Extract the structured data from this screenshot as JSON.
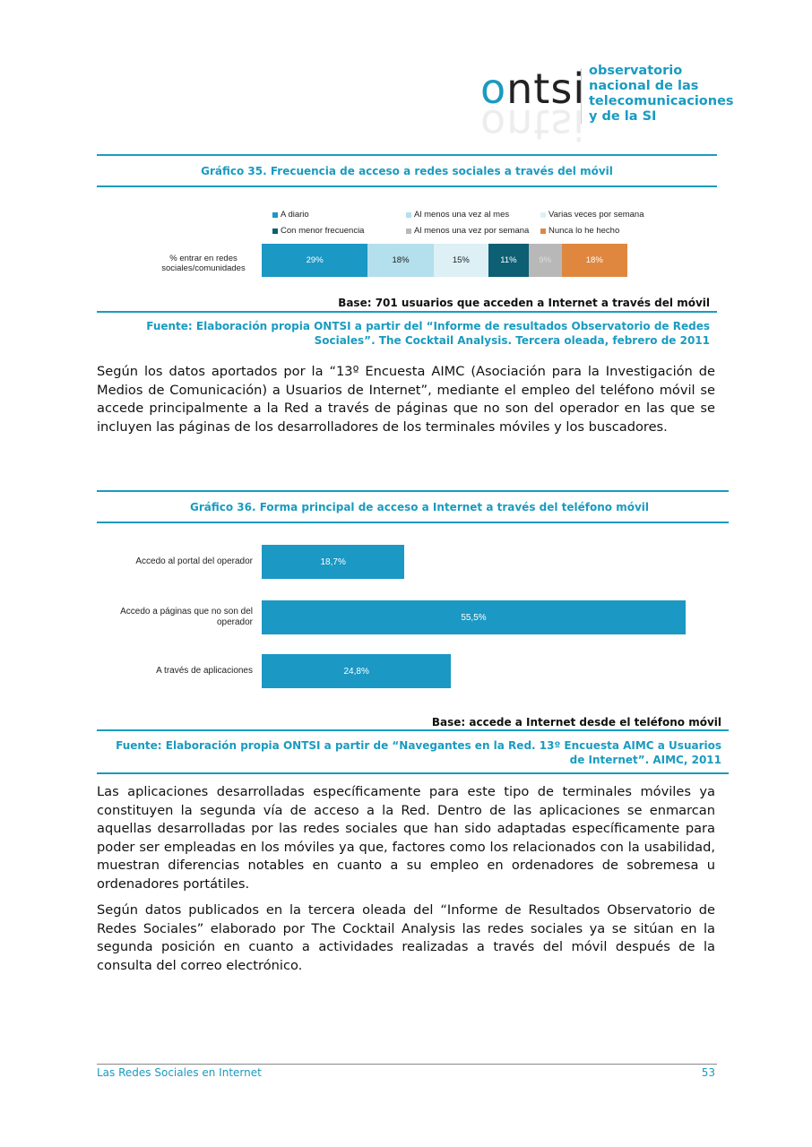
{
  "logo": {
    "word": "ontsi",
    "text": [
      "observatorio",
      "nacional de las",
      "telecomunicaciones",
      "y de la SI"
    ]
  },
  "chart1": {
    "title": "Gráfico 35. Frecuencia de acceso a redes sociales a través del móvil",
    "base": "Base: 701 usuarios que acceden a Internet a través del móvil",
    "fuente1": "Fuente: Elaboración propia ONTSI a partir del “Informe de resultados Observatorio de Redes",
    "fuente2": "Sociales”. The Cocktail Analysis. Tercera oleada, febrero de 2011"
  },
  "chart2": {
    "title": "Gráfico 36. Forma principal de acceso a Internet a través del teléfono móvil",
    "base": "Base: accede a Internet desde el teléfono móvil",
    "fuente1": "Fuente: Elaboración propia ONTSI a partir de “Navegantes en la Red. 13º Encuesta AIMC a Usuarios",
    "fuente2": "de Internet”. AIMC,  2011"
  },
  "chart_data": [
    {
      "type": "bar",
      "stacked": true,
      "orientation": "horizontal",
      "categories": [
        "% entrar en redes sociales/comunidades"
      ],
      "legend": "top",
      "series": [
        {
          "name": "A diario",
          "values": [
            29
          ],
          "label": "29%",
          "color": "#1b98c4"
        },
        {
          "name": "Al menos una vez al mes",
          "values": [
            18
          ],
          "label": "18%",
          "color": "#b4dfec"
        },
        {
          "name": "Varias veces por semana",
          "values": [
            15
          ],
          "label": "15%",
          "color": "#dcf0f6"
        },
        {
          "name": "Con menor frecuencia",
          "values": [
            11
          ],
          "label": "11%",
          "color": "#0d5f73"
        },
        {
          "name": "Al menos una vez por semana",
          "values": [
            9
          ],
          "label": "9%",
          "color": "#b8b8b8"
        },
        {
          "name": "Nunca lo he hecho",
          "values": [
            18
          ],
          "label": "18%",
          "color": "#e0873f"
        }
      ]
    },
    {
      "type": "bar",
      "orientation": "horizontal",
      "categories": [
        "Accedo al portal del operador",
        "Accedo a páginas que no son del operador",
        "A través de aplicaciones"
      ],
      "values": [
        18.7,
        55.5,
        24.8
      ],
      "labels": [
        "18,7%",
        "55,5%",
        "24,8%"
      ],
      "color": "#1b98c4"
    }
  ],
  "paragraphs": {
    "p1": "Según los datos aportados por la “13º Encuesta AIMC (Asociación para la Investigación de Medios de Comunicación) a Usuarios de Internet”, mediante el empleo del teléfono móvil se accede principalmente a la Red a través de páginas que no son del operador en las que se incluyen las páginas de los desarrolladores de los terminales móviles y los buscadores.",
    "p2": "Las aplicaciones desarrolladas específicamente para este tipo de terminales móviles ya constituyen la segunda vía de acceso a la Red. Dentro de las aplicaciones se enmarcan aquellas desarrolladas por las redes sociales que han sido adaptadas específicamente para poder ser empleadas en los móviles ya que, factores como los relacionados con la usabilidad, muestran diferencias notables en cuanto a su empleo en ordenadores de sobremesa u ordenadores portátiles.",
    "p3": "Según datos publicados en la tercera oleada del “Informe de Resultados Observatorio de Redes Sociales” elaborado por The Cocktail Analysis las redes sociales ya se sitúan en la segunda posición en cuanto a actividades realizadas a través del móvil después de la consulta del correo electrónico."
  },
  "footer": {
    "title": "Las Redes Sociales en Internet",
    "page": "53"
  }
}
